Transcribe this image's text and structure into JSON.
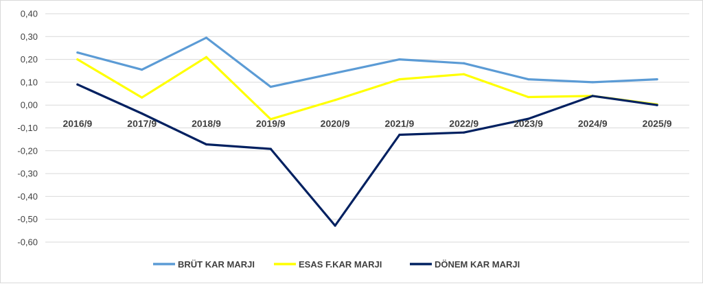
{
  "chart_data": {
    "type": "line",
    "title": "",
    "xlabel": "",
    "ylabel": "",
    "categories": [
      "2016/9",
      "2017/9",
      "2018/9",
      "2019/9",
      "2020/9",
      "2021/9",
      "2022/9",
      "2023/9",
      "2024/9",
      "2025/9"
    ],
    "ylim": [
      -0.6,
      0.4
    ],
    "yticks": [
      0.4,
      0.3,
      0.2,
      0.1,
      0.0,
      -0.1,
      -0.2,
      -0.3,
      -0.4,
      -0.5,
      -0.6
    ],
    "ytick_labels": [
      "0,40",
      "0,30",
      "0,20",
      "0,10",
      "0,00",
      "-0,10",
      "-0,20",
      "-0,30",
      "-0,40",
      "-0,50",
      "-0,60"
    ],
    "grid": true,
    "legend_position": "bottom",
    "series": [
      {
        "name": "BRÜT KAR MARJI",
        "color": "#5b9bd5",
        "values": [
          0.23,
          0.155,
          0.295,
          0.08,
          0.14,
          0.2,
          0.183,
          0.113,
          0.1,
          0.113
        ]
      },
      {
        "name": "ESAS F.KAR MARJI",
        "color": "#ffff00",
        "values": [
          0.2,
          0.033,
          0.21,
          -0.062,
          0.022,
          0.113,
          0.135,
          0.035,
          0.04,
          0.003
        ]
      },
      {
        "name": "DÖNEM KAR MARJI",
        "color": "#002060",
        "values": [
          0.09,
          -0.037,
          -0.172,
          -0.192,
          -0.528,
          -0.13,
          -0.12,
          -0.06,
          0.04,
          0.0
        ]
      }
    ]
  }
}
